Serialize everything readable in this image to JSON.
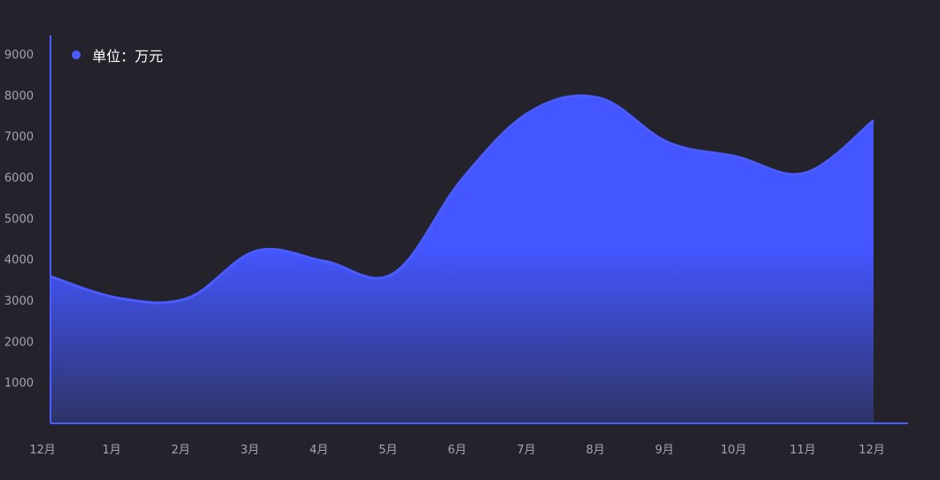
{
  "chart_data": {
    "type": "area",
    "categories": [
      "12月",
      "1月",
      "2月",
      "3月",
      "4月",
      "5月",
      "6月",
      "7月",
      "8月",
      "9月",
      "10月",
      "11月",
      "12月"
    ],
    "series": [
      {
        "name": "单位：万元",
        "values": [
          3580,
          3050,
          3050,
          4200,
          3950,
          3650,
          5950,
          7600,
          7930,
          6850,
          6500,
          6100,
          7380
        ]
      }
    ],
    "ylim": [
      0,
      9500
    ],
    "yticks": [
      1000,
      2000,
      3000,
      4000,
      5000,
      6000,
      7000,
      8000,
      9000
    ],
    "title": "",
    "xlabel": "",
    "ylabel": "",
    "legend": "top-left",
    "grid": false,
    "colors": {
      "background": "#24232c",
      "line": "#4a5cff",
      "fill_top": "#4456ff",
      "fill_bottom": "#2e3366",
      "axis": "#4a5cff",
      "tick_text": "#a4a4b0",
      "legend_text": "#ffffff"
    }
  }
}
